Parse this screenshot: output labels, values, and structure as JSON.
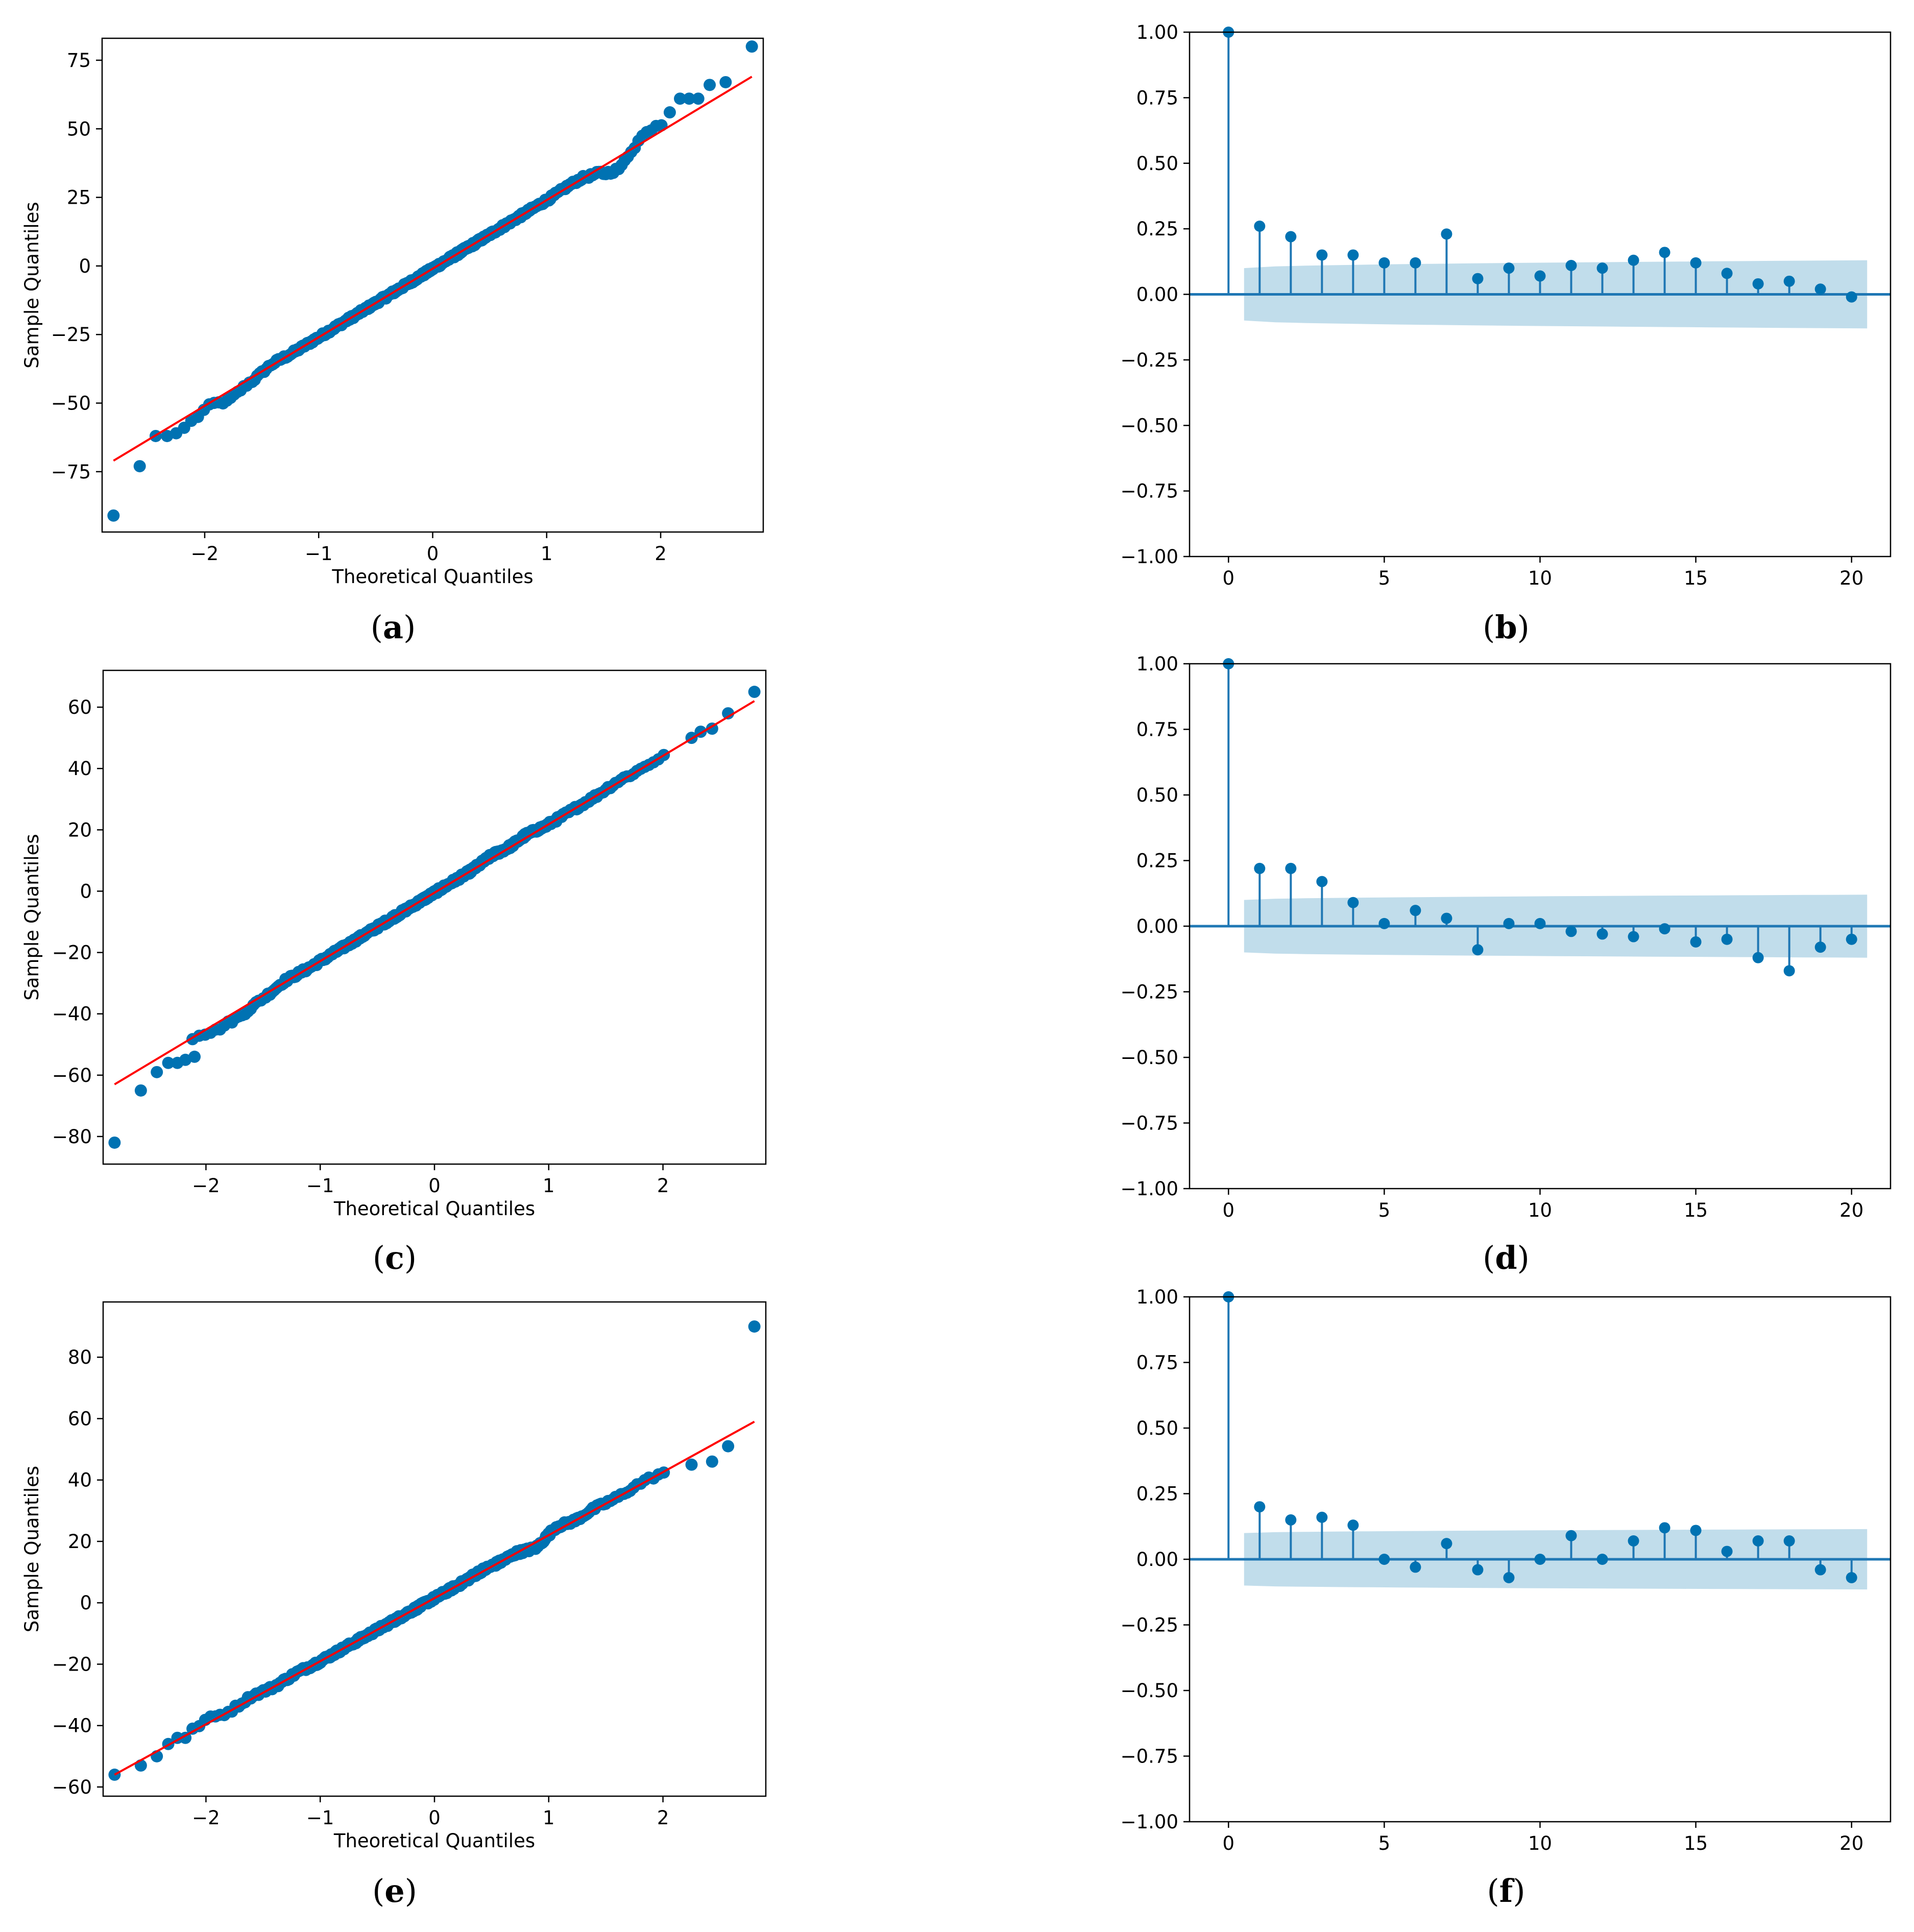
{
  "chart_data": [
    {
      "id": "a",
      "type": "scatter",
      "kind": "qq",
      "caption": "a",
      "xlabel": "Theoretical Quantiles",
      "ylabel": "Sample Quantiles",
      "xlim": [
        -2.9,
        2.9
      ],
      "ylim": [
        -97,
        83
      ],
      "xticks": [
        -2,
        -1,
        0,
        1,
        2
      ],
      "yticks": [
        -75,
        -50,
        -25,
        0,
        25,
        50,
        75
      ],
      "reference_line": {
        "x": [
          -2.8,
          2.8
        ],
        "y": [
          -71,
          69
        ]
      },
      "outliers": {
        "x": [
          -2.8,
          -2.57,
          -2.43,
          -2.33,
          -2.25,
          -2.18,
          2.08,
          2.17,
          2.25,
          2.33,
          2.43,
          2.57,
          2.8
        ],
        "y": [
          -91,
          -73,
          -62,
          -62,
          -61,
          -59,
          56,
          61,
          61,
          61,
          66,
          67,
          80
        ]
      },
      "deviations": [
        [
          -2.1,
          -3
        ],
        [
          -1.8,
          -3.5
        ],
        [
          -1.6,
          -1.5
        ],
        [
          -1.4,
          0.5
        ],
        [
          0.9,
          0
        ],
        [
          1.2,
          0.5
        ],
        [
          1.5,
          -2
        ],
        [
          1.65,
          -5
        ],
        [
          1.75,
          2
        ],
        [
          1.95,
          3.5
        ]
      ]
    },
    {
      "id": "b",
      "type": "bar",
      "kind": "acf",
      "caption": "b",
      "xlim": [
        -1.25,
        21.25
      ],
      "ylim": [
        -1.0,
        1.0
      ],
      "xticks": [
        0,
        5,
        10,
        15,
        20
      ],
      "yticks": [
        "1.00",
        "0.75",
        "0.50",
        "0.25",
        "0.00",
        "−0.25",
        "−0.50",
        "−0.75",
        "−1.00"
      ],
      "lags": [
        0,
        1,
        2,
        3,
        4,
        5,
        6,
        7,
        8,
        9,
        10,
        11,
        12,
        13,
        14,
        15,
        16,
        17,
        18,
        19,
        20
      ],
      "values": [
        1.0,
        0.26,
        0.22,
        0.15,
        0.15,
        0.12,
        0.12,
        0.23,
        0.06,
        0.1,
        0.07,
        0.11,
        0.1,
        0.13,
        0.16,
        0.12,
        0.08,
        0.04,
        0.05,
        0.02,
        -0.01
      ],
      "confidence_start": 0.1,
      "confidence_end": 0.13
    },
    {
      "id": "c",
      "type": "scatter",
      "kind": "qq",
      "caption": "c",
      "xlabel": "Theoretical Quantiles",
      "ylabel": "Sample Quantiles",
      "xlim": [
        -2.9,
        2.9
      ],
      "ylim": [
        -89,
        72
      ],
      "xticks": [
        -2,
        -1,
        0,
        1,
        2
      ],
      "yticks": [
        -80,
        -60,
        -40,
        -20,
        0,
        20,
        40,
        60
      ],
      "reference_line": {
        "x": [
          -2.8,
          2.8
        ],
        "y": [
          -63,
          62
        ]
      },
      "outliers": {
        "x": [
          -2.8,
          -2.57,
          -2.43,
          -2.33,
          -2.25,
          -2.18,
          -2.1,
          2.25,
          2.33,
          2.43,
          2.57,
          2.8
        ],
        "y": [
          -82,
          -65,
          -59,
          -56,
          -56,
          -55,
          -54,
          50,
          52,
          53,
          58,
          65
        ]
      },
      "deviations": [
        [
          -1.9,
          -2.5
        ],
        [
          -1.7,
          -2.5
        ],
        [
          -1.5,
          -1
        ],
        [
          -1.3,
          0.5
        ],
        [
          0.5,
          1
        ],
        [
          0.8,
          1
        ],
        [
          1.2,
          0
        ],
        [
          1.6,
          0.5
        ]
      ]
    },
    {
      "id": "d",
      "type": "bar",
      "kind": "acf",
      "caption": "d",
      "xlim": [
        -1.25,
        21.25
      ],
      "ylim": [
        -1.0,
        1.0
      ],
      "xticks": [
        0,
        5,
        10,
        15,
        20
      ],
      "yticks": [
        "1.00",
        "0.75",
        "0.50",
        "0.25",
        "0.00",
        "−0.25",
        "−0.50",
        "−0.75",
        "−1.00"
      ],
      "lags": [
        0,
        1,
        2,
        3,
        4,
        5,
        6,
        7,
        8,
        9,
        10,
        11,
        12,
        13,
        14,
        15,
        16,
        17,
        18,
        19,
        20
      ],
      "values": [
        1.0,
        0.22,
        0.22,
        0.17,
        0.09,
        0.01,
        0.06,
        0.03,
        -0.09,
        0.01,
        0.01,
        -0.02,
        -0.03,
        -0.04,
        -0.01,
        -0.06,
        -0.05,
        -0.12,
        -0.17,
        -0.08,
        -0.05
      ],
      "confidence_start": 0.1,
      "confidence_end": 0.12
    },
    {
      "id": "e",
      "type": "scatter",
      "kind": "qq",
      "caption": "e",
      "xlabel": "Theoretical Quantiles",
      "ylabel": "Sample Quantiles",
      "xlim": [
        -2.9,
        2.9
      ],
      "ylim": [
        -63,
        98
      ],
      "xticks": [
        -2,
        -1,
        0,
        1,
        2
      ],
      "yticks": [
        -60,
        -40,
        -20,
        0,
        20,
        40,
        60,
        80
      ],
      "reference_line": {
        "x": [
          -2.8,
          2.8
        ],
        "y": [
          -56,
          59
        ]
      },
      "outliers": {
        "x": [
          -2.8,
          -2.57,
          -2.43,
          -2.33,
          -2.25,
          -2.18,
          2.25,
          2.43,
          2.57,
          2.8
        ],
        "y": [
          -56,
          -53,
          -50,
          -46,
          -44,
          -44,
          45,
          46,
          51,
          90
        ]
      },
      "deviations": [
        [
          -2.0,
          1.5
        ],
        [
          -1.6,
          1
        ],
        [
          -1.2,
          0.5
        ],
        [
          0.4,
          0.5
        ],
        [
          0.9,
          -2
        ],
        [
          1.05,
          1.5
        ],
        [
          1.4,
          0.5
        ],
        [
          1.8,
          0.5
        ],
        [
          2.1,
          -0.5
        ]
      ]
    },
    {
      "id": "f",
      "type": "bar",
      "kind": "acf",
      "caption": "f",
      "xlim": [
        -1.25,
        21.25
      ],
      "ylim": [
        -1.0,
        1.0
      ],
      "xticks": [
        0,
        5,
        10,
        15,
        20
      ],
      "yticks": [
        "1.00",
        "0.75",
        "0.50",
        "0.25",
        "0.00",
        "−0.25",
        "−0.50",
        "−0.75",
        "−1.00"
      ],
      "lags": [
        0,
        1,
        2,
        3,
        4,
        5,
        6,
        7,
        8,
        9,
        10,
        11,
        12,
        13,
        14,
        15,
        16,
        17,
        18,
        19,
        20
      ],
      "values": [
        1.0,
        0.2,
        0.15,
        0.16,
        0.13,
        0.0,
        -0.03,
        0.06,
        -0.04,
        -0.07,
        0.0,
        0.09,
        0.0,
        0.07,
        0.12,
        0.11,
        0.03,
        0.07,
        0.07,
        -0.04,
        -0.07
      ],
      "confidence_start": 0.1,
      "confidence_end": 0.115
    }
  ],
  "colors": {
    "point": "#0072b2",
    "reference_line": "#ff0000",
    "stem": "#1f77b4",
    "confidence_band": "#a6cee3",
    "axis": "#000000"
  }
}
